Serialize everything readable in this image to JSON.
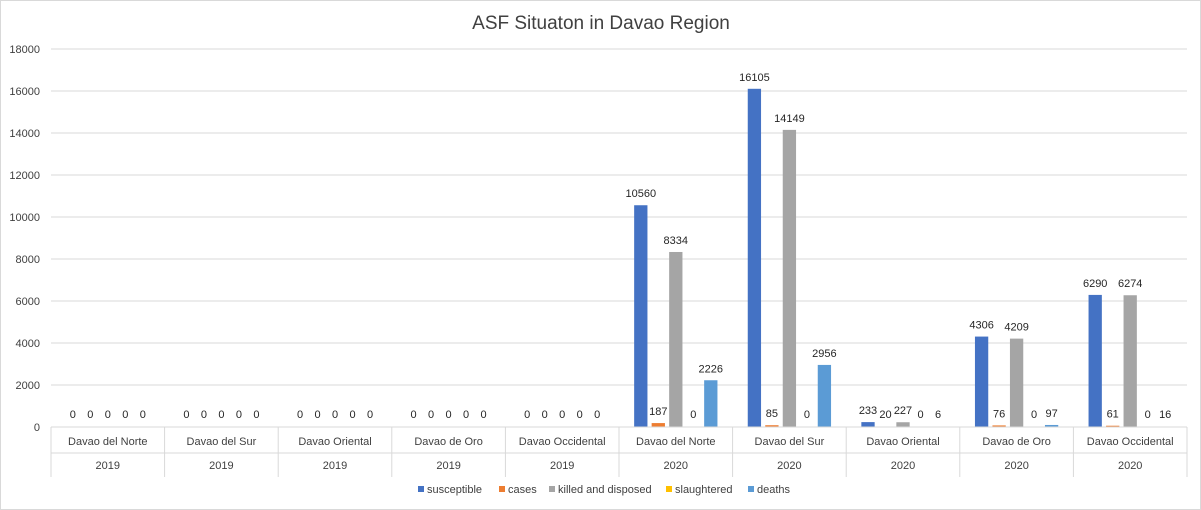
{
  "chart_data": {
    "type": "bar",
    "title": "ASF Situaton in Davao Region",
    "xlabel": "",
    "ylabel": "",
    "ylim": [
      0,
      18000
    ],
    "yticks": [
      0,
      2000,
      4000,
      6000,
      8000,
      10000,
      12000,
      14000,
      16000,
      18000
    ],
    "grid": true,
    "legend_position": "bottom",
    "categories": [
      {
        "province": "Davao del Norte",
        "year": "2019"
      },
      {
        "province": "Davao del Sur",
        "year": "2019"
      },
      {
        "province": "Davao Oriental",
        "year": "2019"
      },
      {
        "province": "Davao de Oro",
        "year": "2019"
      },
      {
        "province": "Davao Occidental",
        "year": "2019"
      },
      {
        "province": "Davao del Norte",
        "year": "2020"
      },
      {
        "province": "Davao del Sur",
        "year": "2020"
      },
      {
        "province": "Davao Oriental",
        "year": "2020"
      },
      {
        "province": "Davao de Oro",
        "year": "2020"
      },
      {
        "province": "Davao Occidental",
        "year": "2020"
      }
    ],
    "series": [
      {
        "name": "susceptible",
        "color": "#4472c4",
        "values": [
          0,
          0,
          0,
          0,
          0,
          10560,
          16105,
          233,
          4306,
          6290
        ]
      },
      {
        "name": "cases",
        "color": "#ed7d31",
        "values": [
          0,
          0,
          0,
          0,
          0,
          187,
          85,
          20,
          76,
          61
        ]
      },
      {
        "name": "killed and disposed",
        "color": "#a5a5a5",
        "values": [
          0,
          0,
          0,
          0,
          0,
          8334,
          14149,
          227,
          4209,
          6274
        ]
      },
      {
        "name": "slaughtered",
        "color": "#ffc000",
        "values": [
          0,
          0,
          0,
          0,
          0,
          0,
          0,
          0,
          0,
          0
        ]
      },
      {
        "name": "deaths",
        "color": "#5b9bd5",
        "values": [
          0,
          0,
          0,
          0,
          0,
          2226,
          2956,
          6,
          97,
          16
        ]
      }
    ]
  }
}
